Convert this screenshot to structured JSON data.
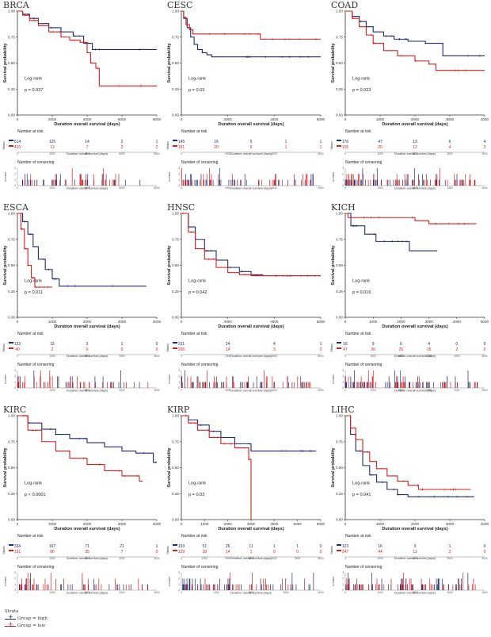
{
  "colors": {
    "high": "#1f2a6b",
    "low": "#d41f1f",
    "axis": "#333333"
  },
  "common": {
    "xlabel": "Duration overall survival (days)",
    "ylabel": "Survival probability",
    "risk_title": "Number at risk",
    "censor_title": "Number of censoring",
    "strata_label": "Strata",
    "censor_ylabel": "n.censor",
    "logrank_label": "Log-rank",
    "yticks": [
      "0.00",
      "0.25",
      "0.50",
      "0.75",
      "1.00"
    ],
    "censor_yticks": [
      "0",
      "1",
      "2",
      "3"
    ]
  },
  "legend": {
    "title": "Strata",
    "high_label": "Group = high",
    "low_label": "Group = low"
  },
  "chart_data": [
    {
      "type": "line",
      "title": "BRCA",
      "pvalue": "p = 0.037",
      "xmax": 8000,
      "xticks": [
        "0",
        "2000",
        "4000",
        "6000",
        "8000"
      ],
      "risk_times": [
        0,
        2000,
        4000,
        6000,
        8000
      ],
      "risk_xticks": [
        "0",
        "2000",
        "4000",
        "6000",
        "8000"
      ],
      "censor_xticks": [
        "0",
        "2000",
        "4000",
        "6000",
        "8000"
      ],
      "high": {
        "time": [
          0,
          300,
          700,
          1200,
          1800,
          2500,
          3200,
          3800,
          4300,
          8000
        ],
        "surv": [
          1.0,
          0.97,
          0.93,
          0.88,
          0.84,
          0.8,
          0.76,
          0.69,
          0.63,
          0.63
        ],
        "risk": [
          "614",
          "125",
          "14",
          "2",
          "1"
        ]
      },
      "low": {
        "time": [
          0,
          300,
          700,
          1200,
          1800,
          2500,
          3000,
          3600,
          4000,
          4200,
          4500,
          4700,
          5300,
          8000
        ],
        "surv": [
          1.0,
          0.96,
          0.91,
          0.86,
          0.8,
          0.75,
          0.72,
          0.7,
          0.6,
          0.5,
          0.45,
          0.28,
          0.28,
          0.28
        ],
        "risk": [
          "410",
          "13",
          "7",
          "2",
          "2"
        ]
      }
    },
    {
      "type": "line",
      "title": "CESC",
      "pvalue": "p = 0.03",
      "xmax": 6000,
      "xticks": [
        "0",
        "2000",
        "4000",
        "6000"
      ],
      "risk_times": [
        0,
        1500,
        3000,
        4500,
        6000
      ],
      "risk_xticks": [
        "0",
        "2000",
        "4000",
        "6000"
      ],
      "censor_xticks": [
        "0",
        "2000",
        "4000",
        "6000"
      ],
      "high": {
        "time": [
          0,
          100,
          250,
          400,
          550,
          700,
          900,
          1100,
          1300,
          6000
        ],
        "surv": [
          1.0,
          0.93,
          0.84,
          0.75,
          0.68,
          0.63,
          0.6,
          0.58,
          0.56,
          0.56
        ],
        "risk": [
          "145",
          "16",
          "5",
          "1",
          "1"
        ]
      },
      "low": {
        "time": [
          0,
          100,
          200,
          350,
          500,
          3400,
          6000
        ],
        "surv": [
          1.0,
          0.94,
          0.87,
          0.82,
          0.78,
          0.73,
          0.73
        ],
        "risk": [
          "161",
          "20",
          "6",
          "1",
          "1"
        ]
      }
    },
    {
      "type": "line",
      "title": "COAD",
      "pvalue": "p = 0.023",
      "xmax": 4000,
      "xticks": [
        "0",
        "1000",
        "2000",
        "3000",
        "4000"
      ],
      "risk_times": [
        0,
        1000,
        2000,
        3000,
        4000
      ],
      "risk_xticks": [
        "0",
        "1000",
        "2000",
        "3000",
        "4000"
      ],
      "censor_xticks": [
        "0",
        "1000",
        "2000",
        "3000",
        "4000"
      ],
      "high": {
        "time": [
          0,
          200,
          400,
          600,
          800,
          1100,
          1400,
          1800,
          2300,
          2800,
          4000
        ],
        "surv": [
          1.0,
          0.95,
          0.9,
          0.85,
          0.8,
          0.76,
          0.73,
          0.71,
          0.69,
          0.57,
          0.57
        ],
        "risk": [
          "176",
          "47",
          "13",
          "6",
          "4"
        ]
      },
      "low": {
        "time": [
          0,
          200,
          400,
          600,
          800,
          1100,
          1500,
          2000,
          2400,
          2600,
          4000
        ],
        "surv": [
          1.0,
          0.93,
          0.85,
          0.77,
          0.69,
          0.62,
          0.57,
          0.52,
          0.49,
          0.43,
          0.43
        ],
        "risk": [
          "105",
          "20",
          "12",
          "4",
          "2"
        ]
      }
    },
    {
      "type": "line",
      "title": "ESCA",
      "pvalue": "p = 0.011",
      "xmax": 4000,
      "xticks": [
        "0",
        "1000",
        "2000",
        "3000",
        "4000"
      ],
      "risk_times": [
        0,
        1000,
        2000,
        3000,
        4000
      ],
      "risk_xticks": [
        "0",
        "1000",
        "2000",
        "3000",
        "4000"
      ],
      "censor_xticks": [
        "0",
        "1000",
        "2000",
        "3000",
        "4000"
      ],
      "high": {
        "time": [
          0,
          150,
          300,
          450,
          600,
          800,
          1000,
          1200,
          3700
        ],
        "surv": [
          1.0,
          0.92,
          0.8,
          0.68,
          0.56,
          0.46,
          0.37,
          0.3,
          0.3
        ],
        "risk": [
          "133",
          "15",
          "3",
          "1",
          "0"
        ]
      },
      "low": {
        "time": [
          0,
          100,
          200,
          300,
          400,
          500,
          1000
        ],
        "surv": [
          1.0,
          0.85,
          0.66,
          0.5,
          0.38,
          0.29,
          0.29
        ],
        "risk": [
          "40",
          "2",
          "0",
          "0",
          "0"
        ]
      }
    },
    {
      "type": "line",
      "title": "HNSC",
      "pvalue": "p = 0.042",
      "xmax": 6000,
      "xticks": [
        "0",
        "2000",
        "4000",
        "6000"
      ],
      "risk_times": [
        0,
        2000,
        4000,
        6000
      ],
      "risk_xticks": [
        "0",
        "2000",
        "4000",
        "6000"
      ],
      "censor_xticks": [
        "0",
        "2000",
        "4000",
        "6000"
      ],
      "high": {
        "time": [
          0,
          300,
          600,
          1000,
          1500,
          2000,
          2500,
          3000,
          3500,
          6000
        ],
        "surv": [
          1.0,
          0.87,
          0.75,
          0.64,
          0.55,
          0.48,
          0.44,
          0.41,
          0.4,
          0.4
        ],
        "risk": [
          "311",
          "24",
          "4",
          "1"
        ]
      },
      "low": {
        "time": [
          0,
          300,
          600,
          1000,
          1500,
          2000,
          2500,
          3000,
          6000
        ],
        "surv": [
          1.0,
          0.82,
          0.66,
          0.56,
          0.48,
          0.43,
          0.41,
          0.4,
          0.4
        ],
        "risk": [
          "206",
          "14",
          "3",
          "0"
        ]
      }
    },
    {
      "type": "line",
      "title": "KICH",
      "pvalue": "p = 0.016",
      "xmax": 5000,
      "xticks": [
        "0",
        "1000",
        "2000",
        "3000",
        "4000",
        "5000"
      ],
      "risk_times": [
        0,
        1000,
        2000,
        3000,
        4000,
        5000
      ],
      "risk_xticks": [
        "0",
        "1000",
        "2000",
        "3000",
        "4000",
        "5000"
      ],
      "censor_xticks": [
        "0",
        "1000",
        "2000",
        "3000",
        "4000",
        "5000"
      ],
      "high": {
        "time": [
          0,
          200,
          700,
          1100,
          2300,
          3300
        ],
        "surv": [
          1.0,
          0.88,
          0.8,
          0.73,
          0.64,
          0.64
        ],
        "risk": [
          "16",
          "9",
          "6",
          "4",
          "0",
          "0"
        ]
      },
      "low": {
        "time": [
          0,
          100,
          2500,
          3000,
          4700
        ],
        "surv": [
          1.0,
          0.96,
          0.93,
          0.9,
          0.9
        ],
        "risk": [
          "47",
          "30",
          "26",
          "15",
          "2",
          "0"
        ]
      }
    },
    {
      "type": "line",
      "title": "KIRC",
      "pvalue": "p < 0.0001",
      "xmax": 4000,
      "xticks": [
        "0",
        "1000",
        "2000",
        "3000",
        "4000"
      ],
      "risk_times": [
        0,
        1000,
        2000,
        3000,
        4000
      ],
      "risk_xticks": [
        "0",
        "1000",
        "2000",
        "3000",
        "4000"
      ],
      "censor_xticks": [
        "0",
        "1000",
        "2000",
        "3000",
        "4000"
      ],
      "high": {
        "time": [
          0,
          300,
          700,
          1100,
          1500,
          2000,
          2500,
          3000,
          3400,
          3900,
          4000
        ],
        "surv": [
          1.0,
          0.93,
          0.87,
          0.82,
          0.78,
          0.74,
          0.7,
          0.66,
          0.64,
          0.55,
          0.55
        ],
        "risk": [
          "334",
          "167",
          "71",
          "21",
          "1"
        ]
      },
      "low": {
        "time": [
          0,
          300,
          700,
          1100,
          1500,
          2000,
          2500,
          3000,
          3500,
          3600
        ],
        "surv": [
          1.0,
          0.86,
          0.75,
          0.66,
          0.59,
          0.53,
          0.47,
          0.42,
          0.37,
          0.37
        ],
        "risk": [
          "191",
          "86",
          "35",
          "7",
          "0"
        ]
      }
    },
    {
      "type": "line",
      "title": "KIRP",
      "pvalue": "p = 0.03",
      "xmax": 6000,
      "xticks": [
        "0",
        "1000",
        "2000",
        "3000",
        "4000",
        "5000",
        "6000"
      ],
      "risk_times": [
        0,
        1000,
        2000,
        3000,
        4000,
        5000,
        6000
      ],
      "risk_xticks": [
        "0",
        "1000",
        "2000",
        "3000",
        "4000",
        "5000",
        "6000"
      ],
      "censor_xticks": [
        "0",
        "1000",
        "2000",
        "3000",
        "4000"
      ],
      "high": {
        "time": [
          0,
          300,
          700,
          1200,
          1700,
          2300,
          3000,
          5800
        ],
        "surv": [
          1.0,
          0.96,
          0.91,
          0.85,
          0.79,
          0.73,
          0.66,
          0.66
        ],
        "risk": [
          "153",
          "51",
          "25",
          "11",
          "1",
          "1",
          "0"
        ]
      },
      "low": {
        "time": [
          0,
          300,
          700,
          1200,
          1700,
          2300,
          2900,
          3000
        ],
        "surv": [
          1.0,
          0.93,
          0.86,
          0.79,
          0.73,
          0.69,
          0.58,
          0.0
        ],
        "risk": [
          "129",
          "38",
          "14",
          "1",
          "0",
          "0",
          "0"
        ]
      }
    },
    {
      "type": "line",
      "title": "LIHC",
      "pvalue": "p = 0.041",
      "xmax": 4000,
      "xticks": [
        "0",
        "1000",
        "2000",
        "3000",
        "4000"
      ],
      "risk_times": [
        0,
        1000,
        2000,
        3000,
        4000
      ],
      "risk_xticks": [
        "0",
        "1000",
        "2000",
        "3000",
        "4000"
      ],
      "censor_xticks": [
        "0",
        "1000",
        "2000",
        "3000",
        "4000"
      ],
      "high": {
        "time": [
          0,
          150,
          300,
          500,
          700,
          900,
          1200,
          1500,
          1800,
          3700
        ],
        "surv": [
          1.0,
          0.82,
          0.66,
          0.52,
          0.43,
          0.36,
          0.29,
          0.24,
          0.22,
          0.22
        ],
        "risk": [
          "123",
          "16",
          "3",
          "1",
          "0"
        ]
      },
      "low": {
        "time": [
          0,
          150,
          300,
          500,
          700,
          900,
          1200,
          1500,
          1800,
          2100,
          3600
        ],
        "surv": [
          1.0,
          0.88,
          0.77,
          0.65,
          0.56,
          0.49,
          0.42,
          0.37,
          0.33,
          0.29,
          0.29
        ],
        "risk": [
          "247",
          "44",
          "11",
          "2",
          "0"
        ]
      }
    }
  ]
}
